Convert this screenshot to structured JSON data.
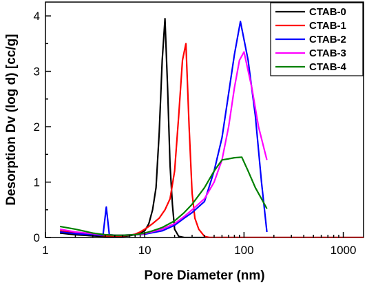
{
  "chart_data": {
    "type": "line",
    "xlabel": "Pore Diameter (nm)",
    "ylabel": "Desorption Dv (log d) [cc/g]",
    "xscale": "log",
    "xlim": [
      1,
      1600
    ],
    "ylim": [
      0,
      4.25
    ],
    "xticks": [
      1,
      10,
      100,
      1000
    ],
    "xtick_labels": [
      "1",
      "10",
      "100",
      "1000"
    ],
    "yticks": [
      0,
      1,
      2,
      3,
      4
    ],
    "ytick_labels": [
      "0",
      "1",
      "2",
      "3",
      "4"
    ],
    "grid": false,
    "legend_position": "top-right",
    "series": [
      {
        "name": "CTAB-0",
        "color": "#000000",
        "x": [
          1.4,
          2,
          3,
          4,
          5,
          6,
          7,
          8,
          9,
          10,
          11,
          12,
          13,
          14,
          15,
          16,
          17,
          18,
          19,
          20,
          22,
          25,
          30,
          40,
          60,
          100,
          200,
          400,
          800,
          1600
        ],
        "y": [
          0.08,
          0.05,
          0.03,
          0.02,
          0.02,
          0.02,
          0.03,
          0.05,
          0.08,
          0.12,
          0.25,
          0.5,
          0.9,
          1.9,
          3.2,
          3.95,
          2.7,
          1.3,
          0.6,
          0.15,
          0.02,
          0.0,
          0.0,
          0.0,
          0.0,
          0.0,
          0.0,
          0.0,
          0.0,
          0.0
        ]
      },
      {
        "name": "CTAB-1",
        "color": "#ff0000",
        "x": [
          1.4,
          2,
          3,
          4,
          5,
          6,
          7,
          8,
          9,
          10,
          11,
          12,
          14,
          16,
          18,
          20,
          22,
          24,
          26,
          28,
          30,
          32,
          35,
          40,
          45,
          60,
          100,
          200,
          500,
          1000,
          1600
        ],
        "y": [
          0.12,
          0.08,
          0.05,
          0.03,
          0.03,
          0.03,
          0.04,
          0.06,
          0.1,
          0.15,
          0.2,
          0.25,
          0.35,
          0.5,
          0.7,
          1.2,
          2.2,
          3.2,
          3.5,
          2.0,
          0.8,
          0.35,
          0.15,
          0.02,
          0.0,
          0.0,
          0.0,
          0.0,
          0.0,
          0.0,
          0.0
        ]
      },
      {
        "name": "CTAB-2",
        "color": "#0000ff",
        "x": [
          1.4,
          2,
          3,
          3.8,
          4.1,
          4.4,
          5,
          6,
          8,
          10,
          15,
          20,
          25,
          30,
          40,
          50,
          60,
          70,
          80,
          92,
          110,
          130,
          150,
          170
        ],
        "y": [
          0.1,
          0.07,
          0.05,
          0.04,
          0.55,
          0.05,
          0.04,
          0.04,
          0.05,
          0.06,
          0.12,
          0.22,
          0.35,
          0.45,
          0.65,
          1.2,
          1.8,
          2.6,
          3.3,
          3.9,
          3.2,
          2.2,
          1.0,
          0.1
        ]
      },
      {
        "name": "CTAB-3",
        "color": "#ff00ff",
        "x": [
          1.4,
          2,
          3,
          4,
          5,
          6,
          8,
          10,
          15,
          20,
          25,
          30,
          40,
          50,
          60,
          70,
          80,
          90,
          100,
          120,
          140,
          170
        ],
        "y": [
          0.15,
          0.1,
          0.07,
          0.05,
          0.04,
          0.04,
          0.05,
          0.07,
          0.15,
          0.25,
          0.38,
          0.5,
          0.7,
          1.0,
          1.4,
          2.0,
          2.7,
          3.2,
          3.35,
          2.7,
          2.0,
          1.4
        ]
      },
      {
        "name": "CTAB-4",
        "color": "#008000",
        "x": [
          1.4,
          2,
          3,
          4,
          5,
          6,
          8,
          10,
          12,
          15,
          20,
          25,
          30,
          40,
          50,
          60,
          70,
          80,
          95,
          110,
          130,
          150,
          170
        ],
        "y": [
          0.2,
          0.15,
          0.08,
          0.05,
          0.04,
          0.04,
          0.05,
          0.08,
          0.12,
          0.18,
          0.3,
          0.45,
          0.6,
          0.9,
          1.2,
          1.4,
          1.42,
          1.44,
          1.45,
          1.2,
          0.9,
          0.7,
          0.52
        ]
      }
    ]
  }
}
